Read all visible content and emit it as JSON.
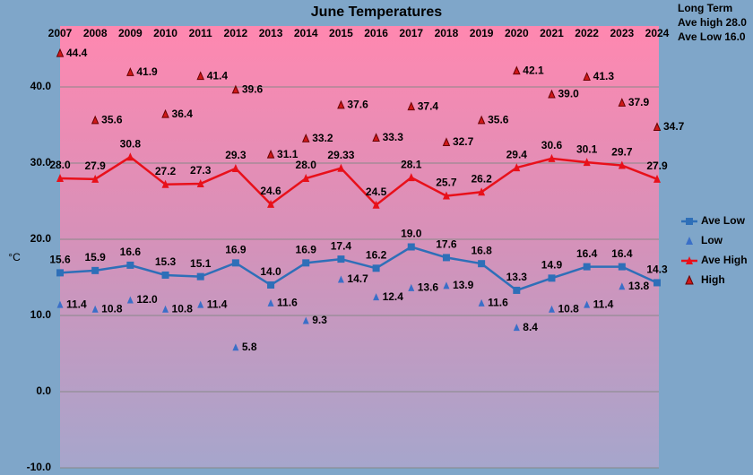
{
  "chart_data": {
    "type": "line",
    "title": "June Temperatures",
    "y_label": "°C",
    "annotations": [
      "Long Term",
      "Ave high  28.0",
      "Ave Low  16.0"
    ],
    "categories": [
      "2007",
      "2008",
      "2009",
      "2010",
      "2011",
      "2012",
      "2013",
      "2014",
      "2015",
      "2016",
      "2017",
      "2018",
      "2019",
      "2020",
      "2021",
      "2022",
      "2023",
      "2024"
    ],
    "ylim": [
      -10,
      48
    ],
    "yticks": [
      {
        "value": -10,
        "label": "-10.0"
      },
      {
        "value": 0,
        "label": "0.0"
      },
      {
        "value": 10,
        "label": "10.0"
      },
      {
        "value": 20,
        "label": "20.0"
      },
      {
        "value": 30,
        "label": "30.0"
      },
      {
        "value": 40,
        "label": "40.0"
      }
    ],
    "grid": true,
    "legend": "right",
    "series": [
      {
        "name": "Ave Low",
        "color": "#2e6fb8",
        "line": true,
        "marker": "square",
        "values": [
          15.6,
          15.9,
          16.6,
          15.3,
          15.1,
          16.9,
          14.0,
          16.9,
          17.4,
          16.2,
          19.0,
          17.6,
          16.8,
          13.3,
          14.9,
          16.4,
          16.4,
          14.3
        ],
        "value_labels": [
          "15.6",
          "15.9",
          "16.6",
          "15.3",
          "15.1",
          "16.9",
          "14.0",
          "16.9",
          "17.4",
          "16.2",
          "19.0",
          "17.6",
          "16.8",
          "13.3",
          "14.9",
          "16.4",
          "16.4",
          "14.3"
        ]
      },
      {
        "name": "Low",
        "color": "#3a6fc8",
        "line": false,
        "marker": "triangle",
        "values": [
          11.4,
          10.8,
          12.0,
          10.8,
          11.4,
          5.8,
          11.6,
          9.3,
          14.7,
          12.4,
          13.6,
          13.9,
          11.6,
          8.4,
          10.8,
          11.4,
          13.8,
          null
        ],
        "value_labels": [
          "11.4",
          "10.8",
          "12.0",
          "10.8",
          "11.4",
          "5.8",
          "11.6",
          "9.3",
          "14.7",
          "12.4",
          "13.6",
          "13.9",
          "11.6",
          "8.4",
          "10.8",
          "11.4",
          "13.8",
          null
        ]
      },
      {
        "name": "Ave High",
        "color": "#e8101a",
        "line": true,
        "marker": "triangle",
        "values": [
          28.0,
          27.9,
          30.8,
          27.2,
          27.3,
          29.3,
          24.6,
          28.0,
          29.33,
          24.5,
          28.1,
          25.7,
          26.2,
          29.4,
          30.6,
          30.1,
          29.7,
          27.9
        ],
        "value_labels": [
          "28.0",
          "27.9",
          "30.8",
          "27.2",
          "27.3",
          "29.3",
          "24.6",
          "28.0",
          "29.33",
          "24.5",
          "28.1",
          "25.7",
          "26.2",
          "29.4",
          "30.6",
          "30.1",
          "29.7",
          "27.9"
        ]
      },
      {
        "name": "High",
        "color": "#d01818",
        "line": false,
        "marker": "triangle",
        "values": [
          44.4,
          35.6,
          41.9,
          36.4,
          41.4,
          39.6,
          31.1,
          33.2,
          37.6,
          33.3,
          37.4,
          32.7,
          35.6,
          42.1,
          39.0,
          41.3,
          37.9,
          34.7
        ],
        "value_labels": [
          "44.4",
          "35.6",
          "41.9",
          "36.4",
          "41.4",
          "39.6",
          "31.1",
          "33.2",
          "37.6",
          "33.3",
          "37.4",
          "32.7",
          "35.6",
          "42.1",
          "39.0",
          "41.3",
          "37.9",
          "34.7"
        ]
      }
    ]
  }
}
